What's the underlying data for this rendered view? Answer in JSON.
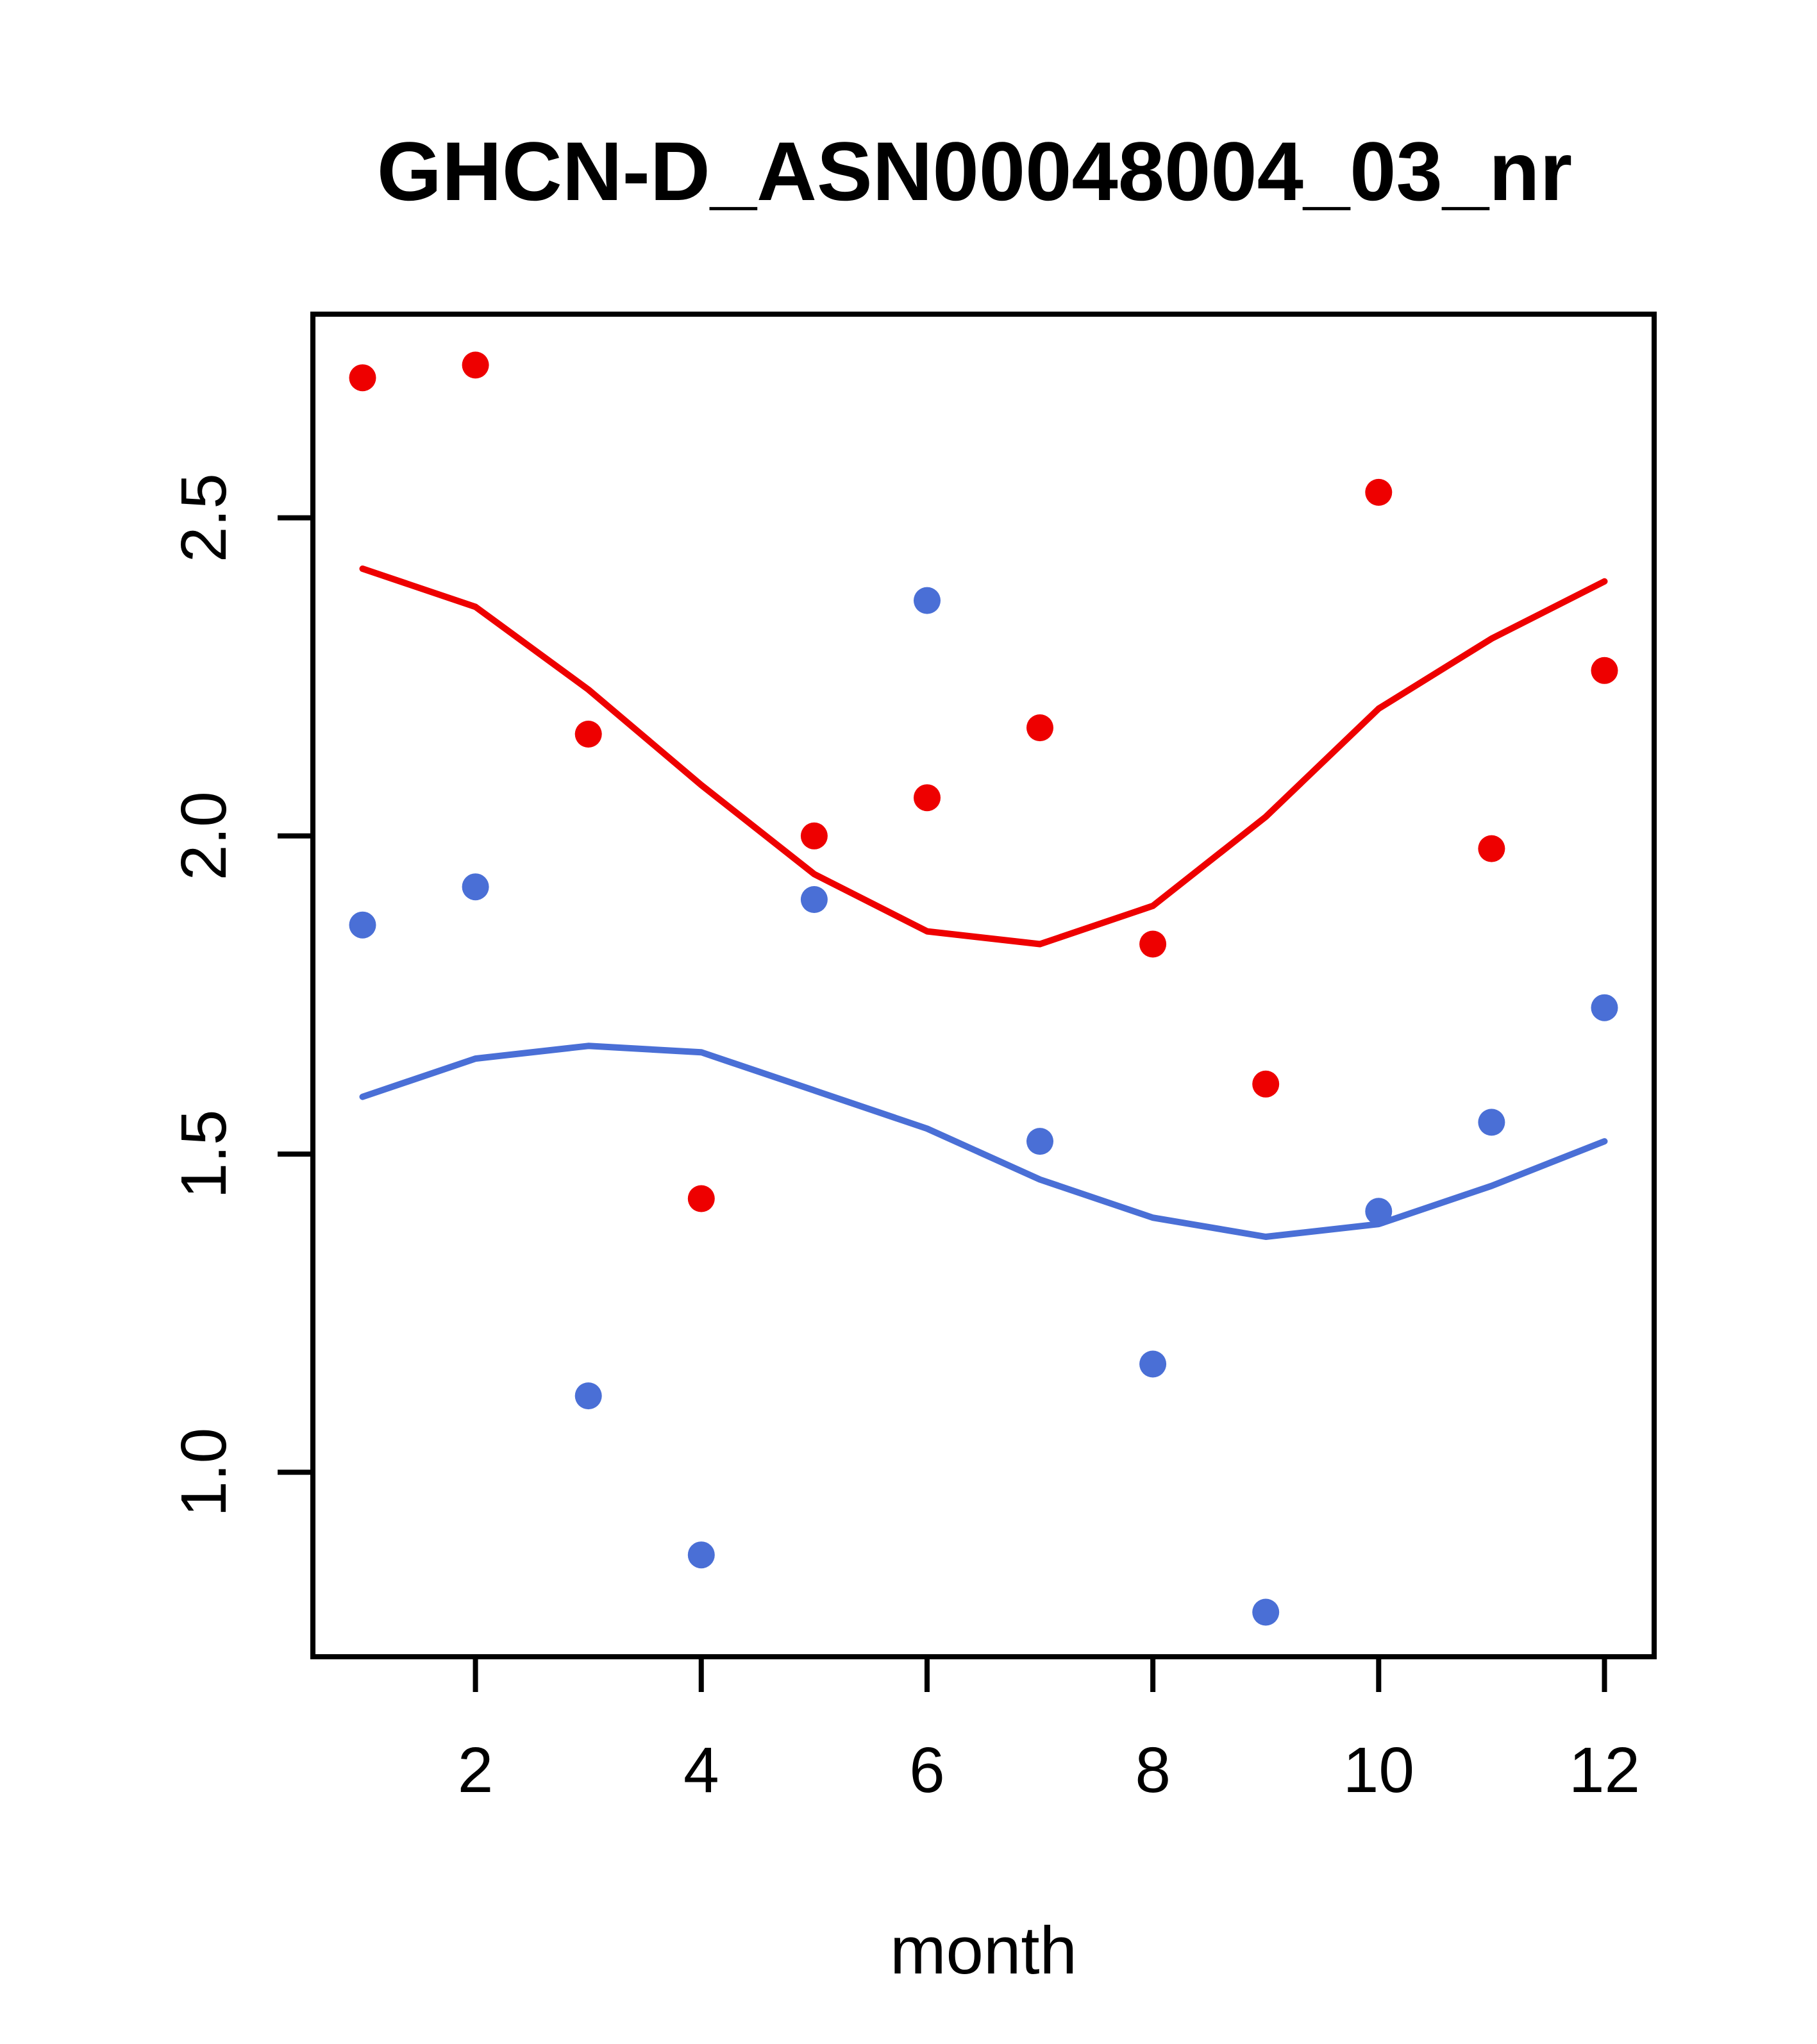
{
  "chart_data": {
    "type": "scatter",
    "title": "GHCN-D_ASN00048004_03_nr",
    "xlabel": "month",
    "ylabel": "",
    "x": [
      1,
      2,
      3,
      4,
      5,
      6,
      7,
      8,
      9,
      10,
      11,
      12
    ],
    "xlim": [
      0.56,
      12.44
    ],
    "ylim": [
      0.71,
      2.82
    ],
    "grid": false,
    "legend_position": "none",
    "xticks": [
      "2",
      "4",
      "6",
      "8",
      "10",
      "12"
    ],
    "xtick_values": [
      2,
      4,
      6,
      8,
      10,
      12
    ],
    "yticks": [
      "1.0",
      "1.5",
      "2.0",
      "2.5"
    ],
    "ytick_values": [
      1.0,
      1.5,
      2.0,
      2.5
    ],
    "colors": {
      "red_series": "#EE0000",
      "blue_series": "#4A6FD6",
      "axis": "#000000",
      "background": "#FFFFFF"
    },
    "series": [
      {
        "name": "red-points",
        "kind": "scatter",
        "color": "#EE0000",
        "values": [
          2.72,
          2.74,
          2.16,
          1.43,
          2.0,
          2.06,
          2.17,
          1.83,
          1.61,
          2.54,
          1.98,
          2.26
        ]
      },
      {
        "name": "blue-points",
        "kind": "scatter",
        "color": "#4A6FD6",
        "values": [
          1.86,
          1.92,
          1.12,
          0.87,
          1.9,
          2.37,
          1.52,
          1.17,
          0.78,
          1.41,
          1.55,
          1.73
        ]
      },
      {
        "name": "red-smooth-line",
        "kind": "line",
        "color": "#EE0000",
        "values": [
          2.42,
          2.36,
          2.23,
          2.08,
          1.94,
          1.85,
          1.83,
          1.89,
          2.03,
          2.2,
          2.31,
          2.4
        ]
      },
      {
        "name": "blue-smooth-line",
        "kind": "line",
        "color": "#4A6FD6",
        "values": [
          1.59,
          1.65,
          1.67,
          1.66,
          1.6,
          1.54,
          1.46,
          1.4,
          1.37,
          1.39,
          1.45,
          1.52
        ]
      }
    ]
  }
}
